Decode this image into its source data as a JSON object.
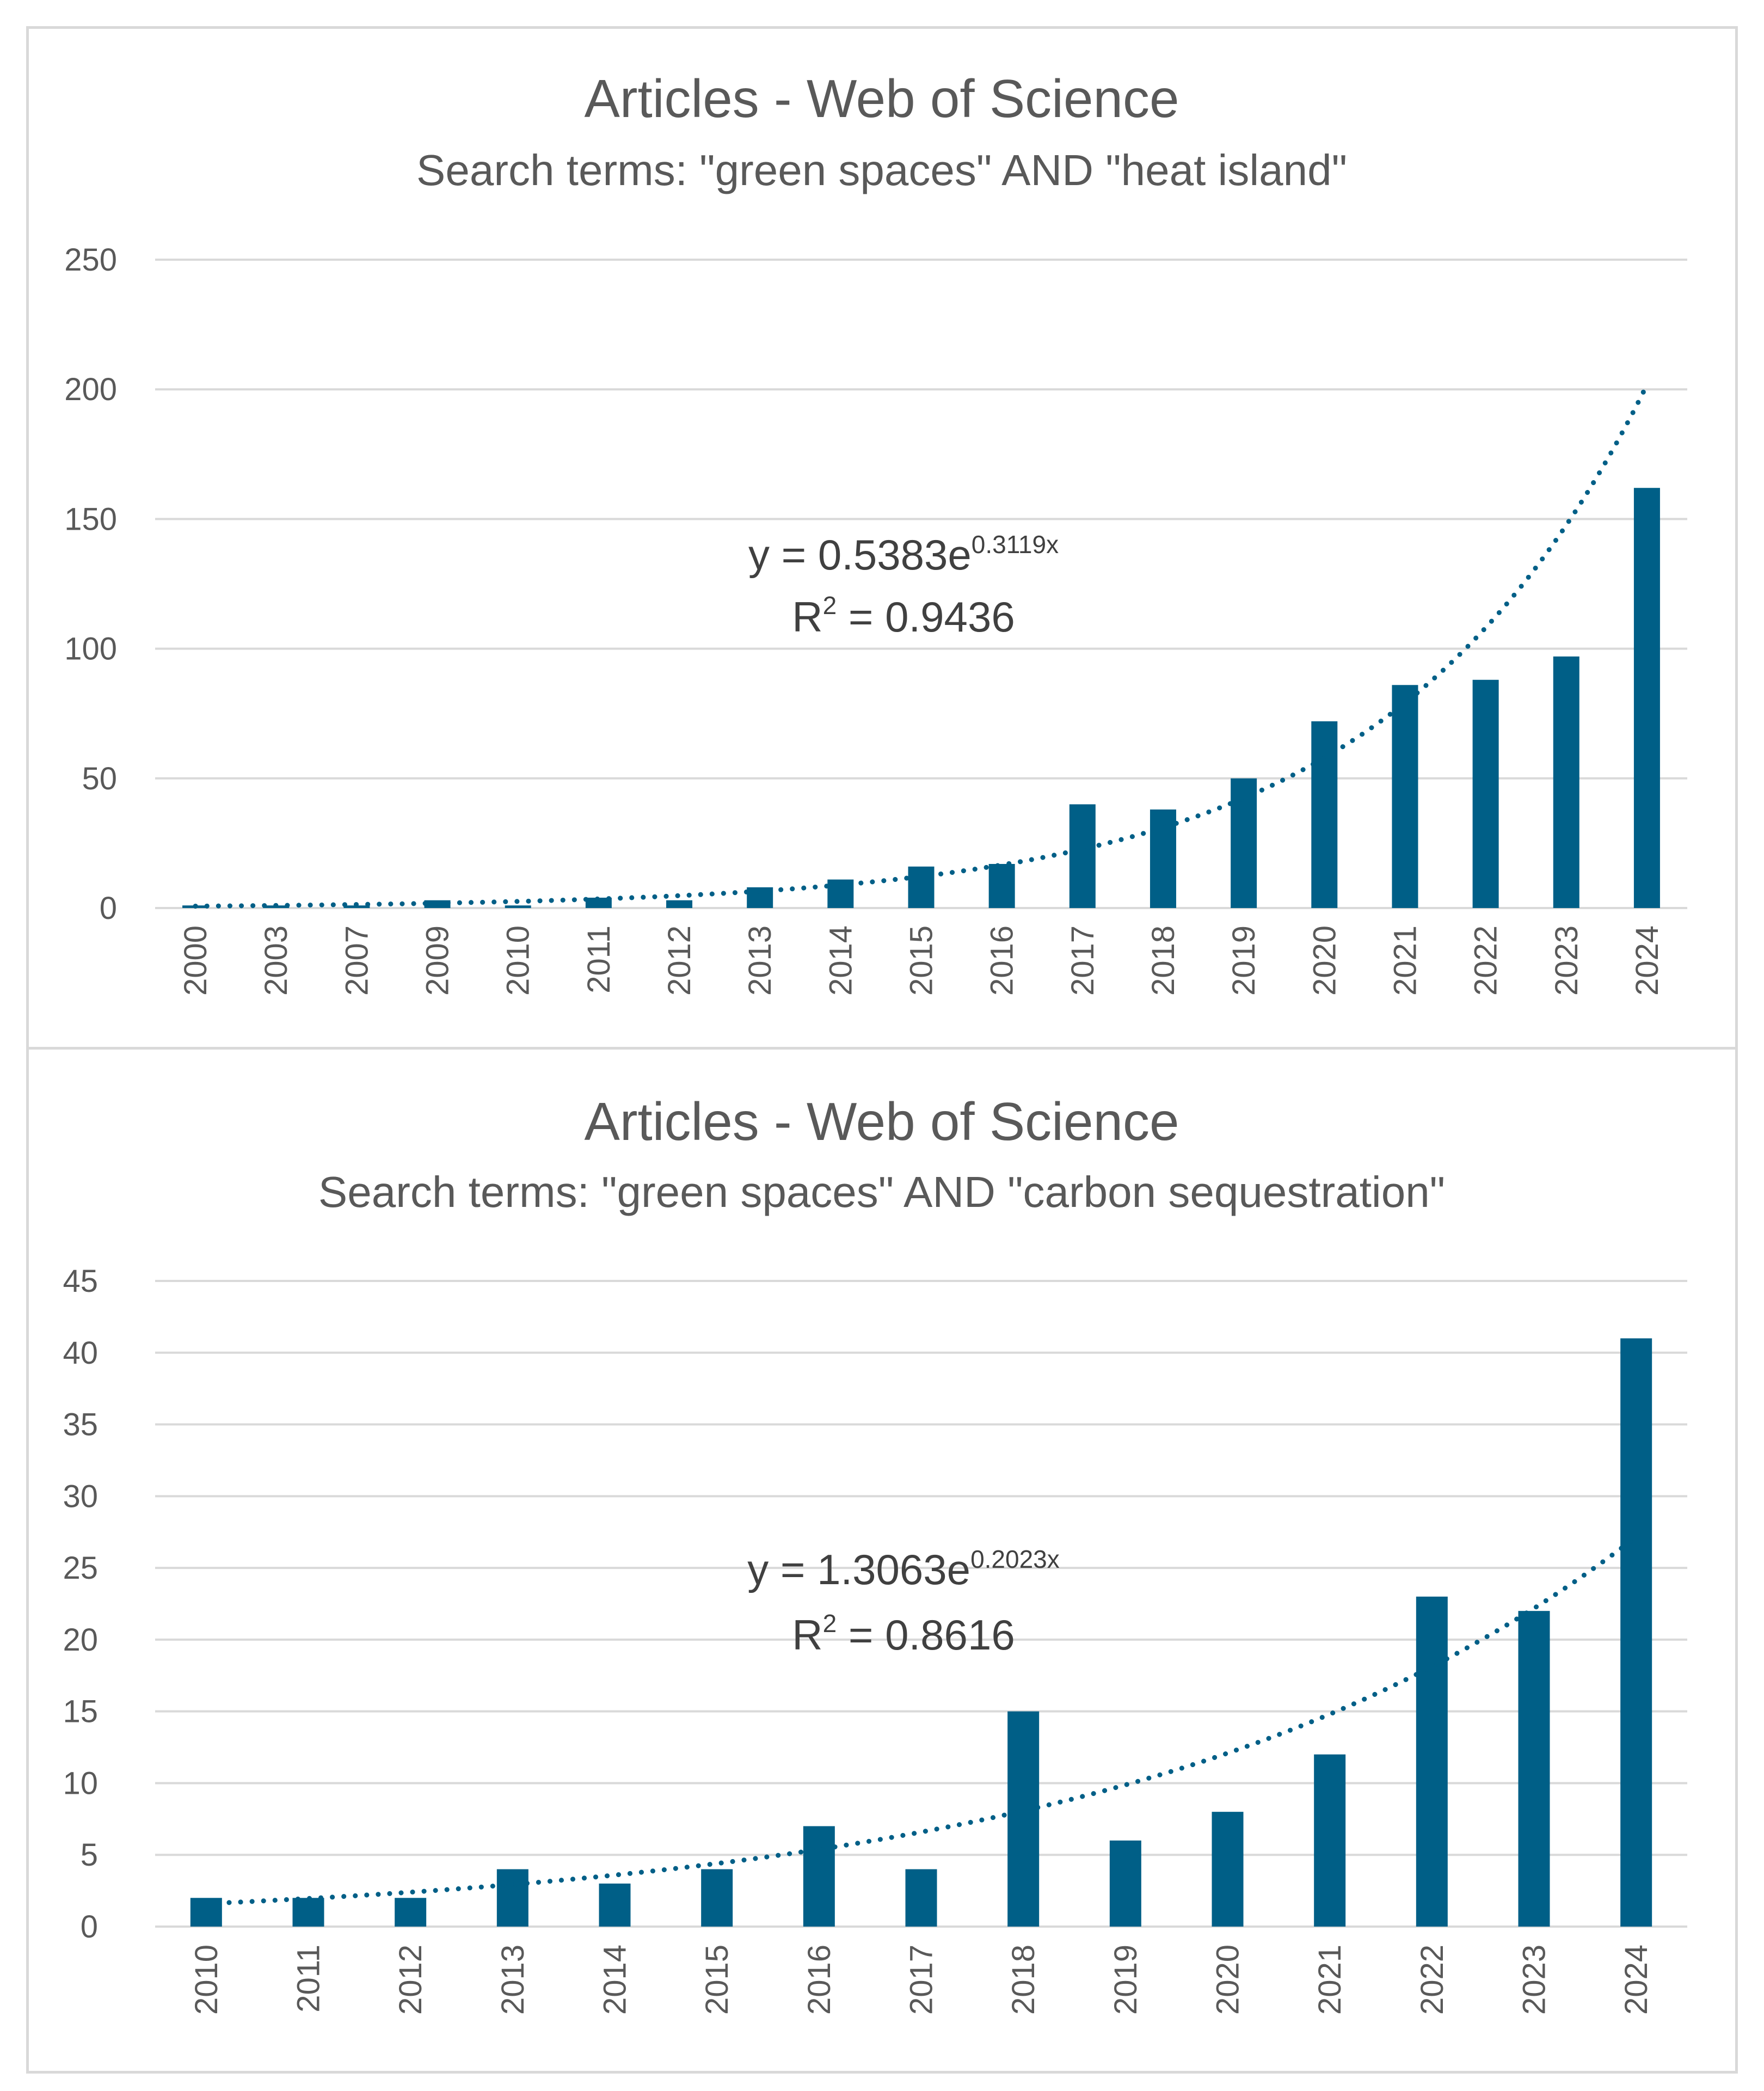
{
  "colors": {
    "bar": "#005F87",
    "grid": "#d9d9d9",
    "text": "#595959"
  },
  "chart_data": [
    {
      "type": "bar",
      "title": "Articles - Web of Science",
      "subtitle": "Search terms: \"green spaces\" AND \"heat island\"",
      "categories": [
        "2000",
        "2003",
        "2007",
        "2009",
        "2010",
        "2011",
        "2012",
        "2013",
        "2014",
        "2015",
        "2016",
        "2017",
        "2018",
        "2019",
        "2020",
        "2021",
        "2022",
        "2023",
        "2024"
      ],
      "values": [
        1,
        1,
        1,
        3,
        1,
        4,
        3,
        8,
        11,
        16,
        17,
        40,
        38,
        50,
        72,
        86,
        88,
        97,
        162
      ],
      "yticks": [
        "0",
        "50",
        "100",
        "150",
        "200",
        "250"
      ],
      "ylim": [
        0,
        250
      ],
      "trendline": {
        "type": "exponential",
        "a": 0.5383,
        "b": 0.3119,
        "style": "dotted"
      },
      "equation": {
        "prefix": "y = 0.5383e",
        "exponent": "0.3119x"
      },
      "r2": {
        "prefix": "R",
        "sup": "2",
        "suffix": " = 0.9436"
      }
    },
    {
      "type": "bar",
      "title": "Articles - Web of Science",
      "subtitle": "Search terms: \"green spaces\" AND \"carbon sequestration\"",
      "categories": [
        "2010",
        "2011",
        "2012",
        "2013",
        "2014",
        "2015",
        "2016",
        "2017",
        "2018",
        "2019",
        "2020",
        "2021",
        "2022",
        "2023",
        "2024"
      ],
      "values": [
        2,
        2,
        2,
        4,
        3,
        4,
        7,
        4,
        15,
        6,
        8,
        12,
        23,
        22,
        41
      ],
      "yticks": [
        "0",
        "5",
        "10",
        "15",
        "20",
        "25",
        "30",
        "35",
        "40",
        "45"
      ],
      "ylim": [
        0,
        45
      ],
      "trendline": {
        "type": "exponential",
        "a": 1.3063,
        "b": 0.2023,
        "style": "dotted"
      },
      "equation": {
        "prefix": "y = 1.3063e",
        "exponent": "0.2023x"
      },
      "r2": {
        "prefix": "R",
        "sup": "2",
        "suffix": " = 0.8616"
      }
    }
  ]
}
